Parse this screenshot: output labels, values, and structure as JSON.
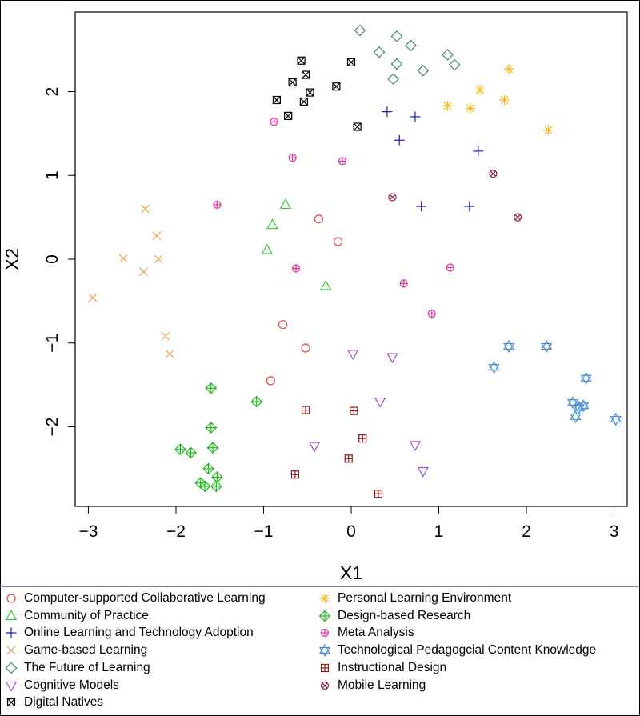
{
  "chart_data": {
    "type": "scatter",
    "xlabel": "X1",
    "ylabel": "X2",
    "xlim": [
      -3.15,
      3.15
    ],
    "ylim": [
      -2.95,
      2.95
    ],
    "xticks": [
      -3,
      -2,
      -1,
      0,
      1,
      2,
      3
    ],
    "yticks": [
      -2,
      -1,
      0,
      1,
      2
    ],
    "xtick_labels": [
      "−3",
      "−2",
      "−1",
      "0",
      "1",
      "2",
      "3"
    ],
    "ytick_labels": [
      "−2",
      "−1",
      "0",
      "1",
      "2"
    ],
    "grid": false,
    "legend_position": "bottom",
    "series": [
      {
        "name": "Computer-supported Collaborative Learning",
        "marker": "circle",
        "color": "#e8433a",
        "points": [
          [
            -0.37,
            0.48
          ],
          [
            -0.15,
            0.21
          ],
          [
            -0.78,
            -0.78
          ],
          [
            -0.52,
            -1.06
          ],
          [
            -0.92,
            -1.45
          ]
        ]
      },
      {
        "name": "Community of Practice",
        "marker": "triangle",
        "color": "#33cc33",
        "points": [
          [
            -0.75,
            0.65
          ],
          [
            -0.9,
            0.41
          ],
          [
            -0.96,
            0.11
          ],
          [
            -0.29,
            -0.32
          ]
        ]
      },
      {
        "name": "Online Learning and Technology Adoption",
        "marker": "plus",
        "color": "#1a1acc",
        "points": [
          [
            0.41,
            1.76
          ],
          [
            0.73,
            1.7
          ],
          [
            0.55,
            1.42
          ],
          [
            1.45,
            1.29
          ],
          [
            0.8,
            0.63
          ],
          [
            1.35,
            0.63
          ]
        ]
      },
      {
        "name": "Game-based Learning",
        "marker": "cross",
        "color": "#f0a050",
        "points": [
          [
            -2.35,
            0.6
          ],
          [
            -2.22,
            0.28
          ],
          [
            -2.6,
            0.01
          ],
          [
            -2.2,
            0.0
          ],
          [
            -2.37,
            -0.15
          ],
          [
            -2.95,
            -0.46
          ],
          [
            -2.12,
            -0.92
          ],
          [
            -2.07,
            -1.13
          ]
        ]
      },
      {
        "name": "The Future of Learning",
        "marker": "diamond",
        "color": "#3d8c6b",
        "points": [
          [
            0.1,
            2.73
          ],
          [
            0.52,
            2.66
          ],
          [
            0.68,
            2.55
          ],
          [
            0.32,
            2.47
          ],
          [
            1.1,
            2.44
          ],
          [
            0.52,
            2.33
          ],
          [
            1.18,
            2.32
          ],
          [
            0.82,
            2.25
          ],
          [
            0.48,
            2.15
          ]
        ]
      },
      {
        "name": "Cognitive Models",
        "marker": "triangle-down",
        "color": "#9b4fc9",
        "points": [
          [
            0.02,
            -1.13
          ],
          [
            0.47,
            -1.17
          ],
          [
            0.33,
            -1.7
          ],
          [
            0.73,
            -2.22
          ],
          [
            -0.42,
            -2.23
          ],
          [
            0.82,
            -2.53
          ]
        ]
      },
      {
        "name": "Digital Natives",
        "marker": "boxtimes",
        "color": "#000000",
        "points": [
          [
            -0.57,
            2.37
          ],
          [
            0.0,
            2.35
          ],
          [
            -0.52,
            2.2
          ],
          [
            -0.67,
            2.11
          ],
          [
            -0.17,
            2.06
          ],
          [
            -0.47,
            1.99
          ],
          [
            -0.85,
            1.9
          ],
          [
            -0.54,
            1.88
          ],
          [
            -0.72,
            1.71
          ],
          [
            0.07,
            1.58
          ]
        ]
      },
      {
        "name": "Personal Learning Environment",
        "marker": "asterisk",
        "color": "#f5b820",
        "points": [
          [
            1.8,
            2.27
          ],
          [
            1.47,
            2.02
          ],
          [
            1.75,
            1.9
          ],
          [
            1.1,
            1.83
          ],
          [
            1.36,
            1.8
          ],
          [
            2.25,
            1.54
          ]
        ]
      },
      {
        "name": "Design-based Research",
        "marker": "oplus",
        "color": "#22bb22",
        "points": [
          [
            -1.6,
            -1.54
          ],
          [
            -1.08,
            -1.7
          ],
          [
            -1.6,
            -2.01
          ],
          [
            -1.95,
            -2.27
          ],
          [
            -1.58,
            -2.25
          ],
          [
            -1.83,
            -2.31
          ],
          [
            -1.63,
            -2.5
          ],
          [
            -1.53,
            -2.6
          ],
          [
            -1.72,
            -2.67
          ],
          [
            -1.67,
            -2.71
          ],
          [
            -1.54,
            -2.71
          ]
        ]
      },
      {
        "name": "Meta Analysis",
        "marker": "circleplus",
        "color": "#e0339e",
        "points": [
          [
            -0.88,
            1.64
          ],
          [
            -0.67,
            1.21
          ],
          [
            -0.1,
            1.17
          ],
          [
            -1.53,
            0.65
          ],
          [
            -0.63,
            -0.11
          ],
          [
            1.13,
            -0.1
          ],
          [
            0.6,
            -0.29
          ],
          [
            0.92,
            -0.65
          ]
        ]
      },
      {
        "name": "Technological Pedagogcial Content Knowledge",
        "marker": "star-david",
        "color": "#4a90d9",
        "points": [
          [
            1.8,
            -1.04
          ],
          [
            2.23,
            -1.04
          ],
          [
            1.63,
            -1.29
          ],
          [
            2.68,
            -1.42
          ],
          [
            2.53,
            -1.71
          ],
          [
            2.65,
            -1.75
          ],
          [
            2.6,
            -1.77
          ],
          [
            2.56,
            -1.88
          ],
          [
            3.02,
            -1.91
          ]
        ]
      },
      {
        "name": "Instructional Design",
        "marker": "boxplus",
        "color": "#8b1a1a",
        "points": [
          [
            -0.52,
            -1.8
          ],
          [
            0.03,
            -1.81
          ],
          [
            0.13,
            -2.14
          ],
          [
            -0.03,
            -2.38
          ],
          [
            -0.64,
            -2.57
          ],
          [
            0.31,
            -2.8
          ]
        ]
      },
      {
        "name": "Mobile Learning",
        "marker": "circletimes",
        "color": "#8b2252",
        "points": [
          [
            1.62,
            1.02
          ],
          [
            0.47,
            0.74
          ],
          [
            1.9,
            0.5
          ]
        ]
      }
    ]
  }
}
